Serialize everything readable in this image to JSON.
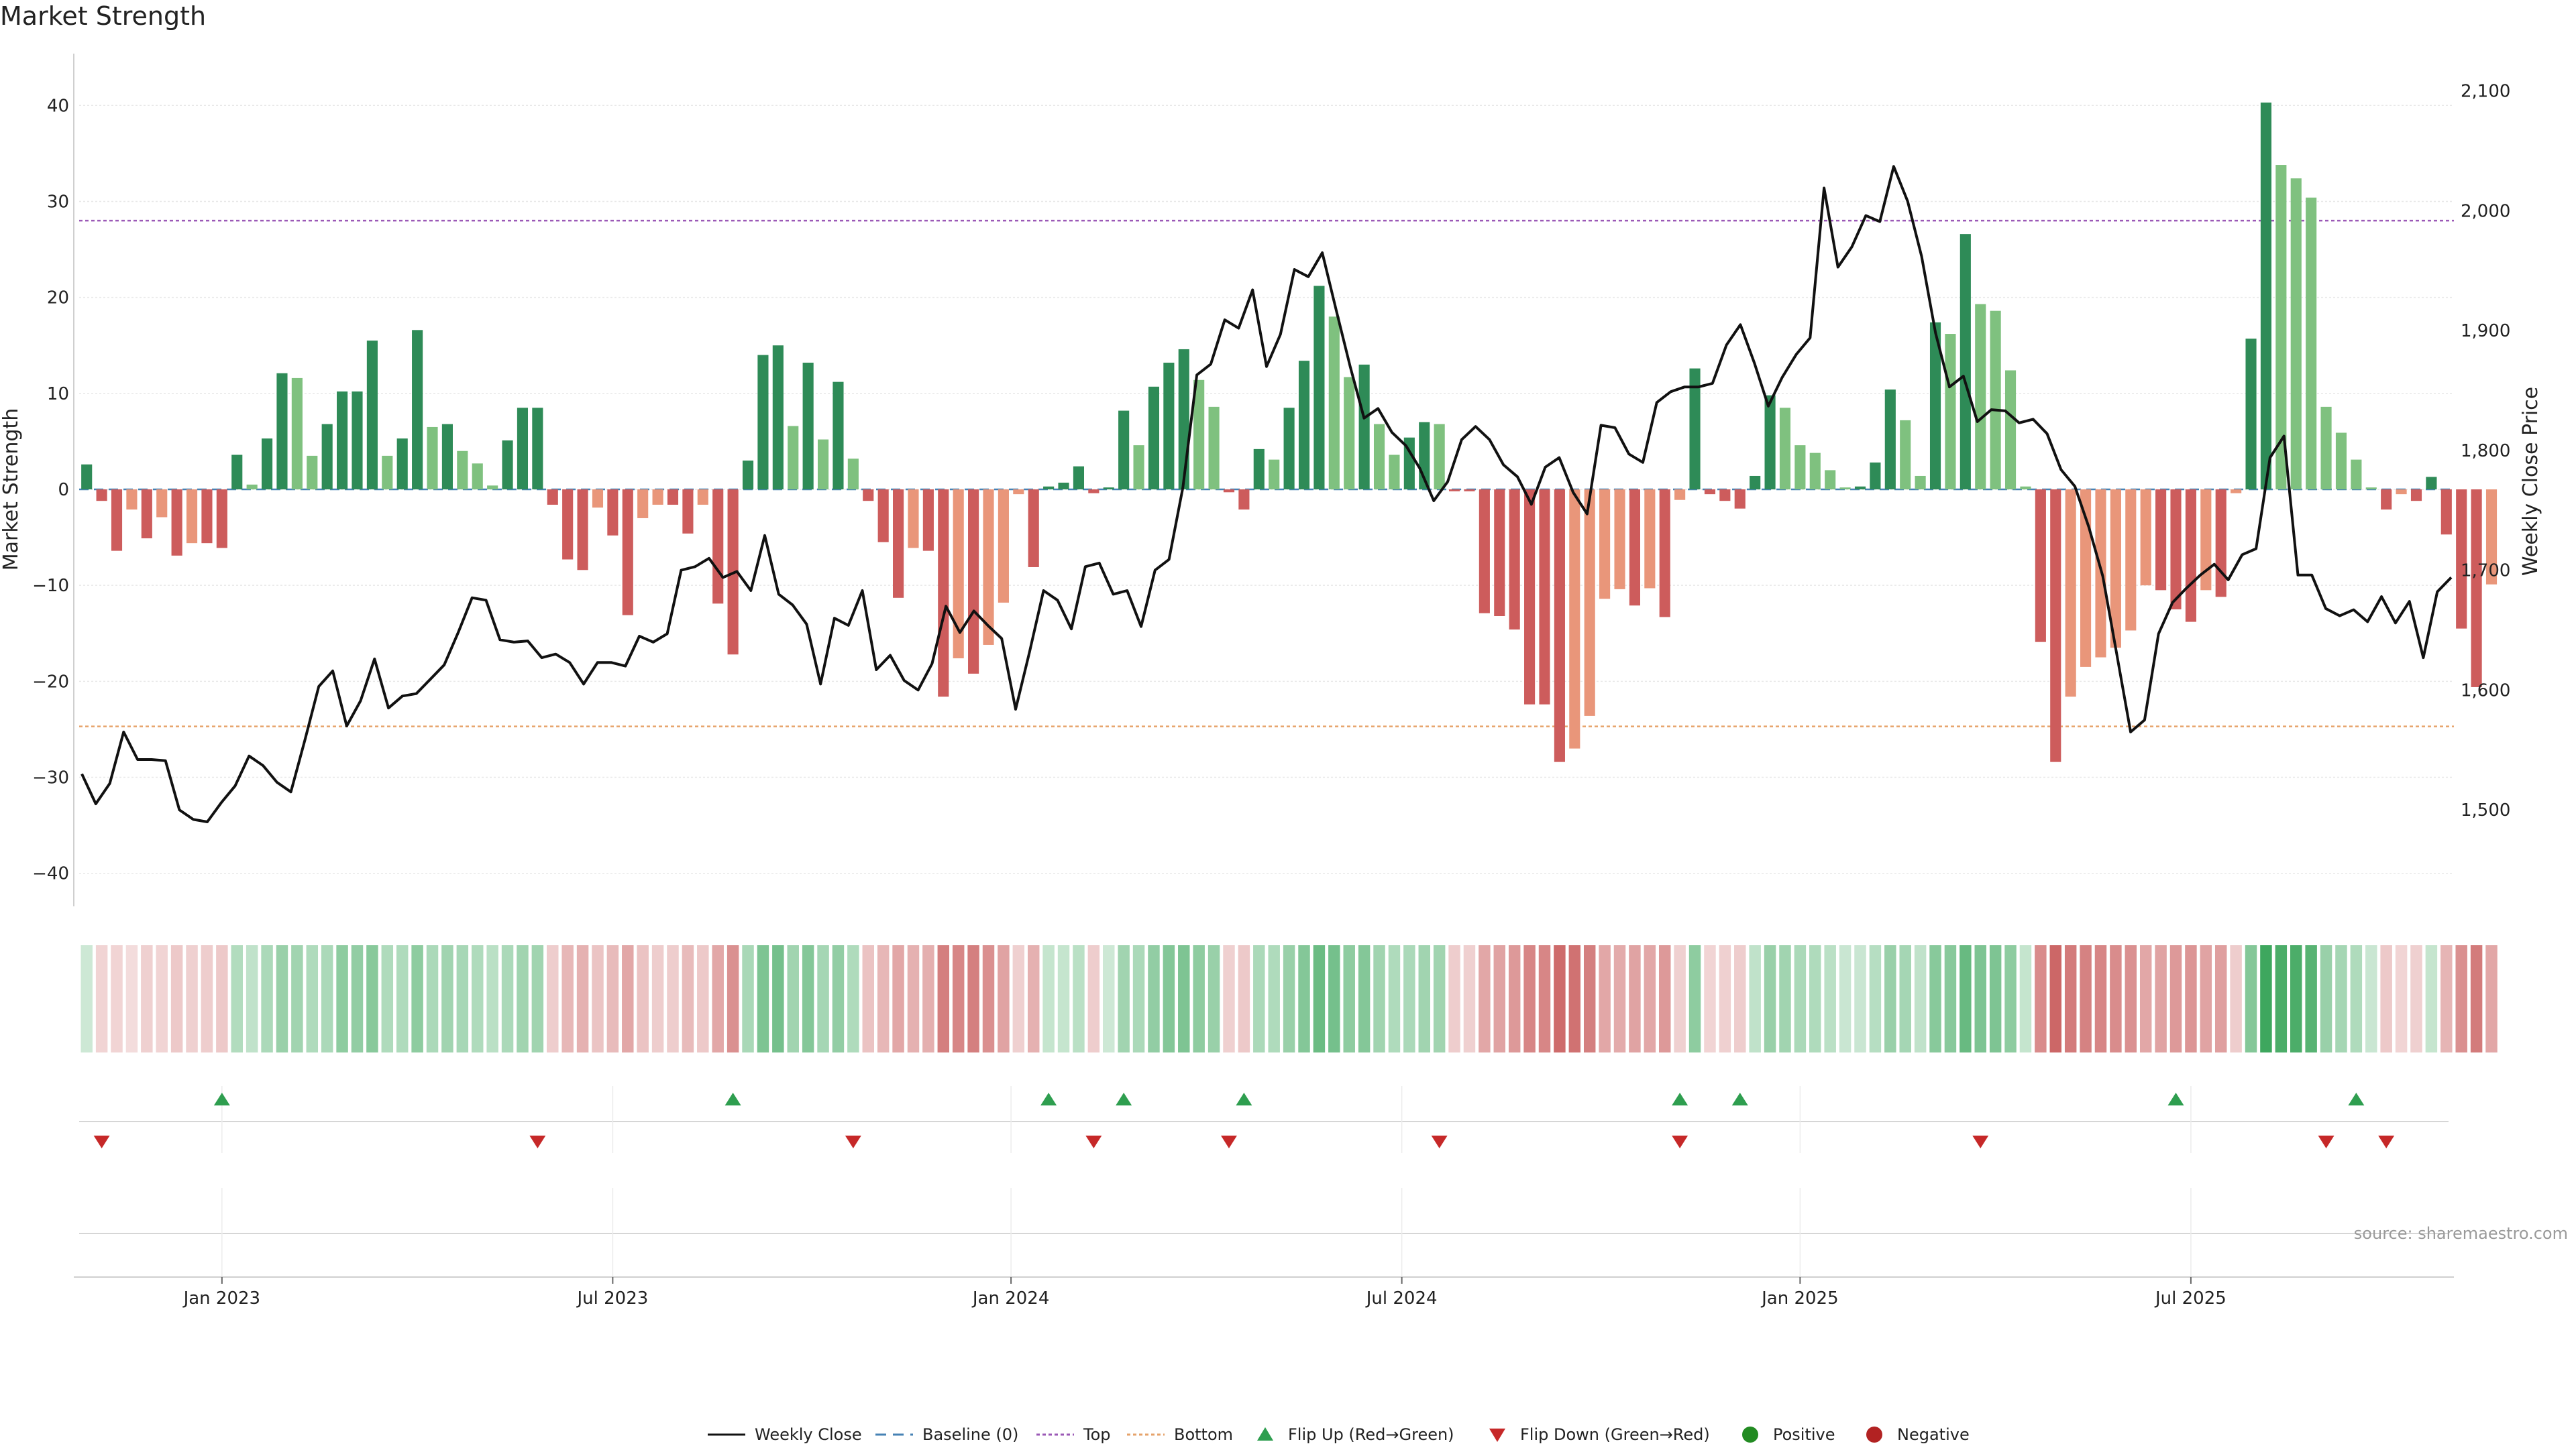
{
  "chart_data": {
    "type": "bar",
    "title": "Market Strength",
    "ylabel": "Market Strength",
    "ylabel_right": "Weekly Close Price",
    "ylim": [
      -44,
      44
    ],
    "ylim_right": [
      1415,
      2120
    ],
    "yticks": [
      -40,
      -30,
      -20,
      -10,
      0,
      10,
      20,
      30,
      40
    ],
    "yticks_right": [
      1500,
      1600,
      1700,
      1800,
      1900,
      2000,
      2100
    ],
    "yticks_right_labels": [
      "1,500",
      "1,600",
      "1,700",
      "1,800",
      "1,900",
      "2,000",
      "2,100"
    ],
    "top_level": 28,
    "bottom_level": -24.7,
    "baseline": 0,
    "n_weeks": 158,
    "x_ticks": [
      {
        "label": "Jan 2023",
        "week": 9
      },
      {
        "label": "Jul 2023",
        "week": 35
      },
      {
        "label": "Jan 2024",
        "week": 61.5
      },
      {
        "label": "Jul 2024",
        "week": 87.5
      },
      {
        "label": "Jan 2025",
        "week": 114
      },
      {
        "label": "Jul 2025",
        "week": 140
      }
    ],
    "strength": [
      2.6,
      -1.2,
      -6.4,
      -2.1,
      -5.1,
      -2.9,
      -6.9,
      -5.6,
      -5.6,
      -6.1,
      3.6,
      0.5,
      5.3,
      12.1,
      11.6,
      3.5,
      6.8,
      10.2,
      10.2,
      15.5,
      3.5,
      5.3,
      16.6,
      6.5,
      6.8,
      4.0,
      2.7,
      0.4,
      5.1,
      8.5,
      8.5,
      -1.6,
      -7.3,
      -8.4,
      -1.9,
      -4.8,
      -13.1,
      -3.0,
      -1.6,
      -1.6,
      -4.6,
      -1.6,
      -11.9,
      -17.2,
      3.0,
      14.0,
      15.0,
      6.6,
      13.2,
      5.2,
      11.2,
      3.2,
      -1.2,
      -5.5,
      -11.3,
      -6.1,
      -6.4,
      -21.6,
      -17.6,
      -19.2,
      -16.2,
      -11.8,
      -0.5,
      -8.1,
      0.3,
      0.7,
      2.4,
      -0.4,
      0.2,
      8.2,
      4.6,
      10.7,
      13.2,
      14.6,
      11.4,
      8.6,
      -0.3,
      -2.1,
      4.2,
      3.1,
      8.5,
      13.4,
      21.2,
      18.0,
      11.7,
      13.0,
      6.8,
      3.6,
      5.4,
      7.0,
      6.8,
      -0.2,
      -0.2,
      -12.9,
      -13.2,
      -14.6,
      -22.4,
      -22.4,
      -28.4,
      -27.0,
      -23.6,
      -11.4,
      -10.4,
      -12.1,
      -10.3,
      -13.3,
      -1.1,
      12.6,
      -0.5,
      -1.2,
      -2.0,
      1.4,
      9.8,
      8.5,
      4.6,
      3.8,
      2.0,
      0.2,
      0.3,
      2.8,
      10.4,
      7.2,
      1.4,
      17.4,
      16.2,
      26.6,
      19.3,
      18.6,
      12.4,
      0.3,
      -15.9,
      -28.4,
      -21.6,
      -18.5,
      -17.5,
      -16.5,
      -14.7,
      -10.0,
      -10.5,
      -12.5,
      -13.8,
      -10.5,
      -11.2,
      -0.4,
      15.7,
      40.3,
      33.8,
      32.4,
      30.4,
      8.6,
      5.9,
      3.1,
      0.2,
      -2.1,
      -0.5,
      -1.2,
      1.3,
      -4.7,
      -14.5,
      -20.6,
      -9.9
    ],
    "close": [
      1530,
      1505,
      1522,
      1565,
      1542,
      1542,
      1541,
      1500,
      1492,
      1490,
      1506,
      1520,
      1545,
      1537,
      1523,
      1515,
      1558,
      1603,
      1616,
      1570,
      1591,
      1626,
      1585,
      1595,
      1597,
      1609,
      1621,
      1648,
      1677,
      1675,
      1642,
      1640,
      1641,
      1627,
      1630,
      1623,
      1605,
      1623,
      1623,
      1620,
      1645,
      1640,
      1647,
      1700,
      1703,
      1710,
      1694,
      1699,
      1683,
      1729,
      1680,
      1671,
      1655,
      1605,
      1660,
      1654,
      1683,
      1617,
      1629,
      1608,
      1600,
      1622,
      1670,
      1648,
      1666,
      1654,
      1643,
      1584,
      1632,
      1683,
      1675,
      1651,
      1703,
      1706,
      1680,
      1683,
      1653,
      1700,
      1709,
      1769,
      1863,
      1872,
      1909,
      1902,
      1934,
      1870,
      1897,
      1951,
      1945,
      1965,
      1917,
      1870,
      1827,
      1835,
      1815,
      1804,
      1785,
      1758,
      1774,
      1809,
      1820,
      1809,
      1788,
      1778,
      1755,
      1786,
      1794,
      1765,
      1747,
      1821,
      1819,
      1797,
      1790,
      1840,
      1849,
      1853,
      1853,
      1856,
      1888,
      1905,
      1873,
      1837,
      1861,
      1880,
      1894,
      2019,
      1953,
      1970,
      1996,
      1991,
      2037,
      2008,
      1962,
      1898,
      1853,
      1862,
      1824,
      1834,
      1833,
      1823,
      1826,
      1814,
      1784,
      1770,
      1736,
      1695,
      1630,
      1565,
      1575,
      1647,
      1673,
      1685,
      1696,
      1705,
      1692,
      1713,
      1718,
      1794,
      1812,
      1696,
      1696,
      1668,
      1662,
      1667,
      1657,
      1678,
      1656,
      1674,
      1627,
      1682,
      1694
    ],
    "heat_strip": [
      [
        0.24,
        0.22,
        0.22,
        0.17,
        0.24,
        0.22,
        0.28,
        0.24,
        0.26,
        0.28,
        0.37,
        0.3,
        0.4,
        0.49,
        0.45,
        0.38,
        0.4,
        0.54,
        0.52,
        0.57,
        0.38,
        0.38,
        0.54,
        0.4,
        0.45,
        0.42,
        0.38,
        0.33,
        0.4,
        0.45,
        0.45,
        0.26,
        0.37,
        0.4,
        0.3,
        0.35,
        0.45,
        0.31,
        0.26,
        0.26,
        0.35,
        0.28,
        0.45,
        0.57,
        0.41,
        0.62,
        0.66,
        0.45,
        0.59,
        0.43,
        0.52,
        0.38,
        0.31,
        0.37,
        0.45,
        0.4,
        0.41,
        0.66,
        0.62,
        0.66,
        0.57,
        0.47,
        0.24,
        0.4,
        0.28,
        0.28,
        0.33,
        0.26,
        0.24,
        0.45,
        0.4,
        0.52,
        0.59,
        0.62,
        0.54,
        0.49,
        0.24,
        0.28,
        0.4,
        0.38,
        0.49,
        0.59,
        0.71,
        0.66,
        0.54,
        0.59,
        0.45,
        0.38,
        0.4,
        0.45,
        0.45,
        0.26,
        0.24,
        0.45,
        0.47,
        0.52,
        0.62,
        0.62,
        0.76,
        0.72,
        0.66,
        0.45,
        0.43,
        0.47,
        0.45,
        0.52,
        0.24,
        0.54,
        0.22,
        0.24,
        0.26,
        0.3,
        0.49,
        0.45,
        0.4,
        0.38,
        0.33,
        0.26,
        0.26,
        0.35,
        0.49,
        0.43,
        0.3,
        0.57,
        0.57,
        0.72,
        0.62,
        0.62,
        0.54,
        0.28,
        0.59,
        0.78,
        0.68,
        0.64,
        0.62,
        0.59,
        0.57,
        0.45,
        0.47,
        0.52,
        0.54,
        0.47,
        0.49,
        0.26,
        0.59,
        0.92,
        0.86,
        0.86,
        0.8,
        0.49,
        0.43,
        0.38,
        0.26,
        0.28,
        0.22,
        0.24,
        0.28,
        0.38,
        0.57,
        0.68,
        0.45
      ]
    ],
    "flip_up_weeks": [
      9,
      43,
      64,
      69,
      77,
      106,
      110,
      139,
      151
    ],
    "flip_down_weeks": [
      1,
      30,
      51,
      67,
      76,
      90,
      106,
      126,
      149,
      153
    ],
    "legend": [
      "Weekly Close",
      "Baseline (0)",
      "Top",
      "Bottom",
      "Flip Up (Red→Green)",
      "Flip Down (Green→Red)",
      "Positive",
      "Negative"
    ],
    "source": "source: sharemaestro.com",
    "colors": {
      "pos_dark": "#2e8b57",
      "pos_light": "#7fc17f",
      "neg_dark": "#cd5c5c",
      "neg_light": "#e9967a",
      "close_line": "#111111",
      "baseline": "#4682b4",
      "top": "#9b59b6",
      "bottom": "#e6a36b",
      "flip_up": "#2e9e4f",
      "flip_down": "#c62828",
      "positive_dot": "#228b22",
      "negative_dot": "#b22222"
    }
  }
}
